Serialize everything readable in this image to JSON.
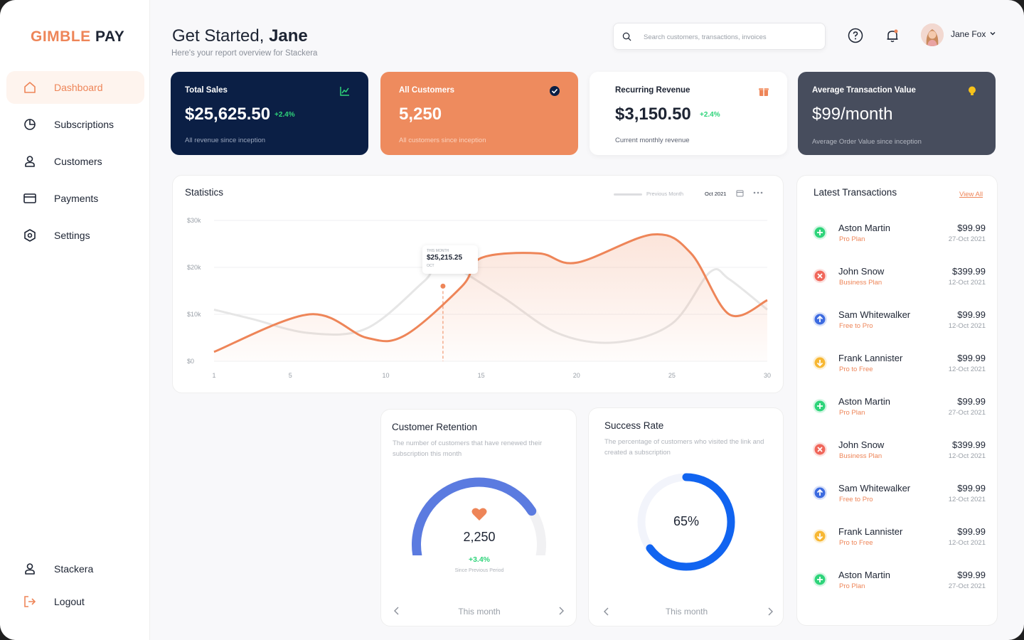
{
  "brand": {
    "name_part1": "GIMBLE",
    "name_part2": "PAY",
    "accent": "#ee8558"
  },
  "sidebar": {
    "items": [
      {
        "label": "Dashboard",
        "icon": "home-icon",
        "active": true
      },
      {
        "label": "Subscriptions",
        "icon": "pie-chart-icon"
      },
      {
        "label": "Customers",
        "icon": "user-icon"
      },
      {
        "label": "Payments",
        "icon": "credit-card-icon"
      },
      {
        "label": "Settings",
        "icon": "settings-hexagon-icon"
      }
    ],
    "bottom": [
      {
        "label": "Stackera",
        "icon": "user-icon"
      },
      {
        "label": "Logout",
        "icon": "logout-icon"
      }
    ]
  },
  "header": {
    "greeting": "Get Started,",
    "name": "Jane",
    "subtitle": "Here's your report overview for Stackera",
    "search_placeholder": "Search customers, transactions, invoices",
    "user_name": "Jane Fox"
  },
  "cards": [
    {
      "title": "Total Sales",
      "value": "$25,625.50",
      "delta": "+2.4%",
      "footer": "All revenue since inception",
      "icon": "trend-chart-icon"
    },
    {
      "title": "All Customers",
      "value": "5,250",
      "footer": "All customers since inception",
      "icon": "customer-badge-icon"
    },
    {
      "title": "Recurring Revenue",
      "value": "$3,150.50",
      "delta": "+2.4%",
      "footer": "Current monthly revenue",
      "icon": "gift-icon"
    },
    {
      "title": "Average Transaction Value",
      "value": "$99/month",
      "footer": "Average Order Value since inception",
      "icon": "bulb-icon"
    }
  ],
  "statistics": {
    "title": "Statistics",
    "legend_label": "Previous Month",
    "date_label": "Oct 2021",
    "tooltip_caption": "THIS MONTH",
    "tooltip_value": "$25,215.25",
    "tooltip_sub": "OCT"
  },
  "chart_data": {
    "type": "area",
    "x": [
      1,
      5,
      10,
      15,
      20,
      25,
      30
    ],
    "xticks": [
      "1",
      "5",
      "10",
      "15",
      "20",
      "25",
      "30"
    ],
    "yticks": [
      "$30k",
      "$20k",
      "$10k",
      "$0"
    ],
    "ylim": [
      0,
      30000
    ],
    "series": [
      {
        "name": "This Month",
        "color": "#ee8558",
        "points": [
          [
            1,
            2000
          ],
          [
            6,
            10000
          ],
          [
            9,
            5000
          ],
          [
            11,
            5500
          ],
          [
            14,
            16000
          ],
          [
            15,
            22000
          ],
          [
            18,
            23000
          ],
          [
            20,
            21000
          ],
          [
            24,
            27000
          ],
          [
            26,
            23000
          ],
          [
            28,
            10000
          ],
          [
            30,
            13000
          ]
        ]
      },
      {
        "name": "Previous Month",
        "color": "#e6e6e6",
        "points": [
          [
            1,
            11000
          ],
          [
            3,
            9000
          ],
          [
            6,
            6000
          ],
          [
            9,
            7000
          ],
          [
            12,
            17000
          ],
          [
            13,
            21000
          ],
          [
            16,
            14000
          ],
          [
            19,
            6000
          ],
          [
            22,
            4000
          ],
          [
            25,
            8000
          ],
          [
            27,
            19000
          ],
          [
            28,
            17500
          ],
          [
            30,
            11000
          ]
        ]
      }
    ],
    "highlight": {
      "x": 13,
      "y": 16000,
      "label": "$25,215.25"
    },
    "grid": true
  },
  "transactions": {
    "title": "Latest Transactions",
    "view_all": "View All",
    "rows": [
      {
        "name": "Aston Martin",
        "plan": "Pro Plan",
        "amount": "$99.99",
        "date": "27-Oct 2021",
        "kind": "add"
      },
      {
        "name": "John Snow",
        "plan": "Business Plan",
        "amount": "$399.99",
        "date": "12-Oct 2021",
        "kind": "cancel"
      },
      {
        "name": "Sam Whitewalker",
        "plan": "Free to Pro",
        "amount": "$99.99",
        "date": "12-Oct 2021",
        "kind": "upgrade"
      },
      {
        "name": "Frank Lannister",
        "plan": "Pro to Free",
        "amount": "$99.99",
        "date": "12-Oct 2021",
        "kind": "downgrade"
      },
      {
        "name": "Aston Martin",
        "plan": "Pro Plan",
        "amount": "$99.99",
        "date": "27-Oct 2021",
        "kind": "add"
      },
      {
        "name": "John Snow",
        "plan": "Business Plan",
        "amount": "$399.99",
        "date": "12-Oct 2021",
        "kind": "cancel"
      },
      {
        "name": "Sam Whitewalker",
        "plan": "Free to Pro",
        "amount": "$99.99",
        "date": "12-Oct 2021",
        "kind": "upgrade"
      },
      {
        "name": "Frank Lannister",
        "plan": "Pro to Free",
        "amount": "$99.99",
        "date": "12-Oct 2021",
        "kind": "downgrade"
      },
      {
        "name": "Aston Martin",
        "plan": "Pro Plan",
        "amount": "$99.99",
        "date": "27-Oct 2021",
        "kind": "add"
      }
    ],
    "kind_colors": {
      "add": "#2ed47a",
      "cancel": "#f0665a",
      "upgrade": "#3d6be0",
      "downgrade": "#f7b733"
    }
  },
  "retention": {
    "title": "Customer Retention",
    "description": "The number of customers that have renewed their subscription this month",
    "value": "2,250",
    "delta": "+3.4%",
    "delta_caption": "Since Previous Period",
    "gauge_fraction": 0.78,
    "period": "This month"
  },
  "success_rate": {
    "title": "Success Rate",
    "description": "The percentage of customers who visited the link and created a subscription",
    "value": "65%",
    "fraction": 0.65,
    "period": "This month"
  }
}
